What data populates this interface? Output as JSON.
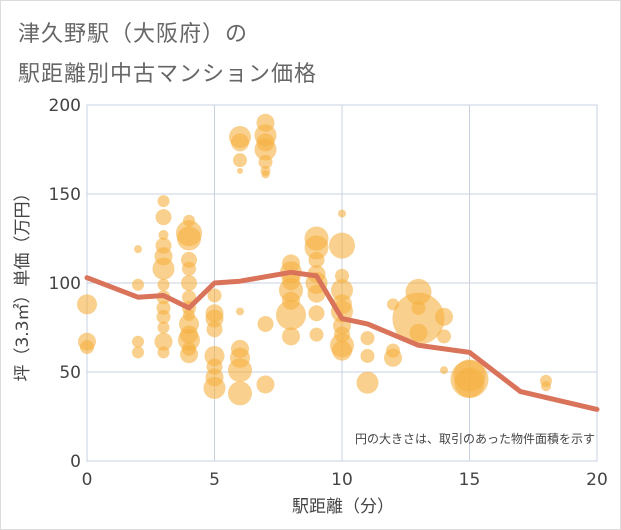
{
  "title_line1": "津久野駅（大阪府）の",
  "title_line2": "駅距離別中古マンション価格",
  "chart_data": {
    "type": "scatter",
    "xlabel": "駅距離（分）",
    "ylabel": "坪（3.3㎡）単価（万円）",
    "xlim": [
      0,
      20
    ],
    "ylim": [
      0,
      200
    ],
    "xticks": [
      "0",
      "5",
      "10",
      "15",
      "20"
    ],
    "yticks": [
      "0",
      "50",
      "100",
      "150",
      "200"
    ],
    "grid": true,
    "note": "円の大きさは、取引のあった物件面積を示す",
    "colors": {
      "bubble": "#f5b041",
      "line": "#d9735a",
      "grid": "#c9d1e0"
    },
    "bubbles": [
      [
        0,
        88,
        10
      ],
      [
        0,
        67,
        9
      ],
      [
        0,
        64,
        7
      ],
      [
        2,
        119,
        4
      ],
      [
        2,
        99,
        6
      ],
      [
        2,
        67,
        6
      ],
      [
        2,
        61,
        6
      ],
      [
        3,
        146,
        6
      ],
      [
        3,
        137,
        8
      ],
      [
        3,
        127,
        5
      ],
      [
        3,
        121,
        8
      ],
      [
        3,
        115,
        9
      ],
      [
        3,
        108,
        11
      ],
      [
        3,
        99,
        6
      ],
      [
        3,
        92,
        7
      ],
      [
        3,
        86,
        7
      ],
      [
        3,
        81,
        7
      ],
      [
        3,
        75,
        6
      ],
      [
        3,
        67,
        9
      ],
      [
        3,
        61,
        6
      ],
      [
        4,
        135,
        6
      ],
      [
        4,
        128,
        13
      ],
      [
        4,
        125,
        12
      ],
      [
        4,
        113,
        8
      ],
      [
        4,
        108,
        7
      ],
      [
        4,
        100,
        8
      ],
      [
        4,
        92,
        7
      ],
      [
        4,
        86,
        7
      ],
      [
        4,
        82,
        6
      ],
      [
        4,
        77,
        10
      ],
      [
        4,
        71,
        9
      ],
      [
        4,
        68,
        11
      ],
      [
        4,
        63,
        7
      ],
      [
        4,
        60,
        9
      ],
      [
        5,
        93,
        7
      ],
      [
        5,
        83,
        9
      ],
      [
        5,
        80,
        9
      ],
      [
        5,
        74,
        8
      ],
      [
        5,
        59,
        10
      ],
      [
        5,
        53,
        8
      ],
      [
        5,
        47,
        9
      ],
      [
        5,
        41,
        11
      ],
      [
        6,
        182,
        11
      ],
      [
        6,
        179,
        9
      ],
      [
        6,
        169,
        7
      ],
      [
        6,
        163,
        3
      ],
      [
        6,
        84,
        4
      ],
      [
        6,
        63,
        9
      ],
      [
        6,
        58,
        10
      ],
      [
        6,
        51,
        12
      ],
      [
        6,
        38,
        12
      ],
      [
        7,
        190,
        9
      ],
      [
        7,
        183,
        11
      ],
      [
        7,
        179,
        9
      ],
      [
        7,
        175,
        11
      ],
      [
        7,
        168,
        7
      ],
      [
        7,
        163,
        5
      ],
      [
        7,
        161,
        4
      ],
      [
        7,
        77,
        8
      ],
      [
        7,
        43,
        9
      ],
      [
        8,
        111,
        9
      ],
      [
        8,
        106,
        11
      ],
      [
        8,
        101,
        9
      ],
      [
        8,
        96,
        12
      ],
      [
        8,
        90,
        9
      ],
      [
        8,
        82,
        15
      ],
      [
        8,
        70,
        9
      ],
      [
        9,
        125,
        12
      ],
      [
        9,
        120,
        12
      ],
      [
        9,
        113,
        8
      ],
      [
        9,
        105,
        9
      ],
      [
        9,
        100,
        11
      ],
      [
        9,
        94,
        9
      ],
      [
        9,
        83,
        8
      ],
      [
        9,
        71,
        7
      ],
      [
        10,
        139,
        4
      ],
      [
        10,
        121,
        13
      ],
      [
        10,
        104,
        7
      ],
      [
        10,
        96,
        11
      ],
      [
        10,
        88,
        10
      ],
      [
        10,
        84,
        11
      ],
      [
        10,
        76,
        9
      ],
      [
        10,
        71,
        8
      ],
      [
        10,
        65,
        12
      ],
      [
        10,
        62,
        10
      ],
      [
        11,
        69,
        7
      ],
      [
        11,
        59,
        7
      ],
      [
        11,
        44,
        11
      ],
      [
        12,
        88,
        6
      ],
      [
        12,
        62,
        7
      ],
      [
        12,
        58,
        9
      ],
      [
        13,
        95,
        13
      ],
      [
        13,
        86,
        7
      ],
      [
        13,
        80,
        26
      ],
      [
        13,
        72,
        9
      ],
      [
        14,
        81,
        9
      ],
      [
        14,
        70,
        7
      ],
      [
        14,
        51,
        4
      ],
      [
        15,
        48,
        16
      ],
      [
        15,
        46,
        19
      ],
      [
        15,
        44,
        15
      ],
      [
        18,
        45,
        6
      ],
      [
        18,
        42,
        5
      ]
    ],
    "line": [
      [
        0,
        103
      ],
      [
        2,
        92
      ],
      [
        3,
        93
      ],
      [
        4,
        86
      ],
      [
        5,
        100
      ],
      [
        6,
        101
      ],
      [
        8,
        106
      ],
      [
        9,
        104
      ],
      [
        10,
        80
      ],
      [
        11,
        77
      ],
      [
        13,
        65
      ],
      [
        15,
        61
      ],
      [
        17,
        39
      ],
      [
        20,
        29
      ]
    ]
  }
}
